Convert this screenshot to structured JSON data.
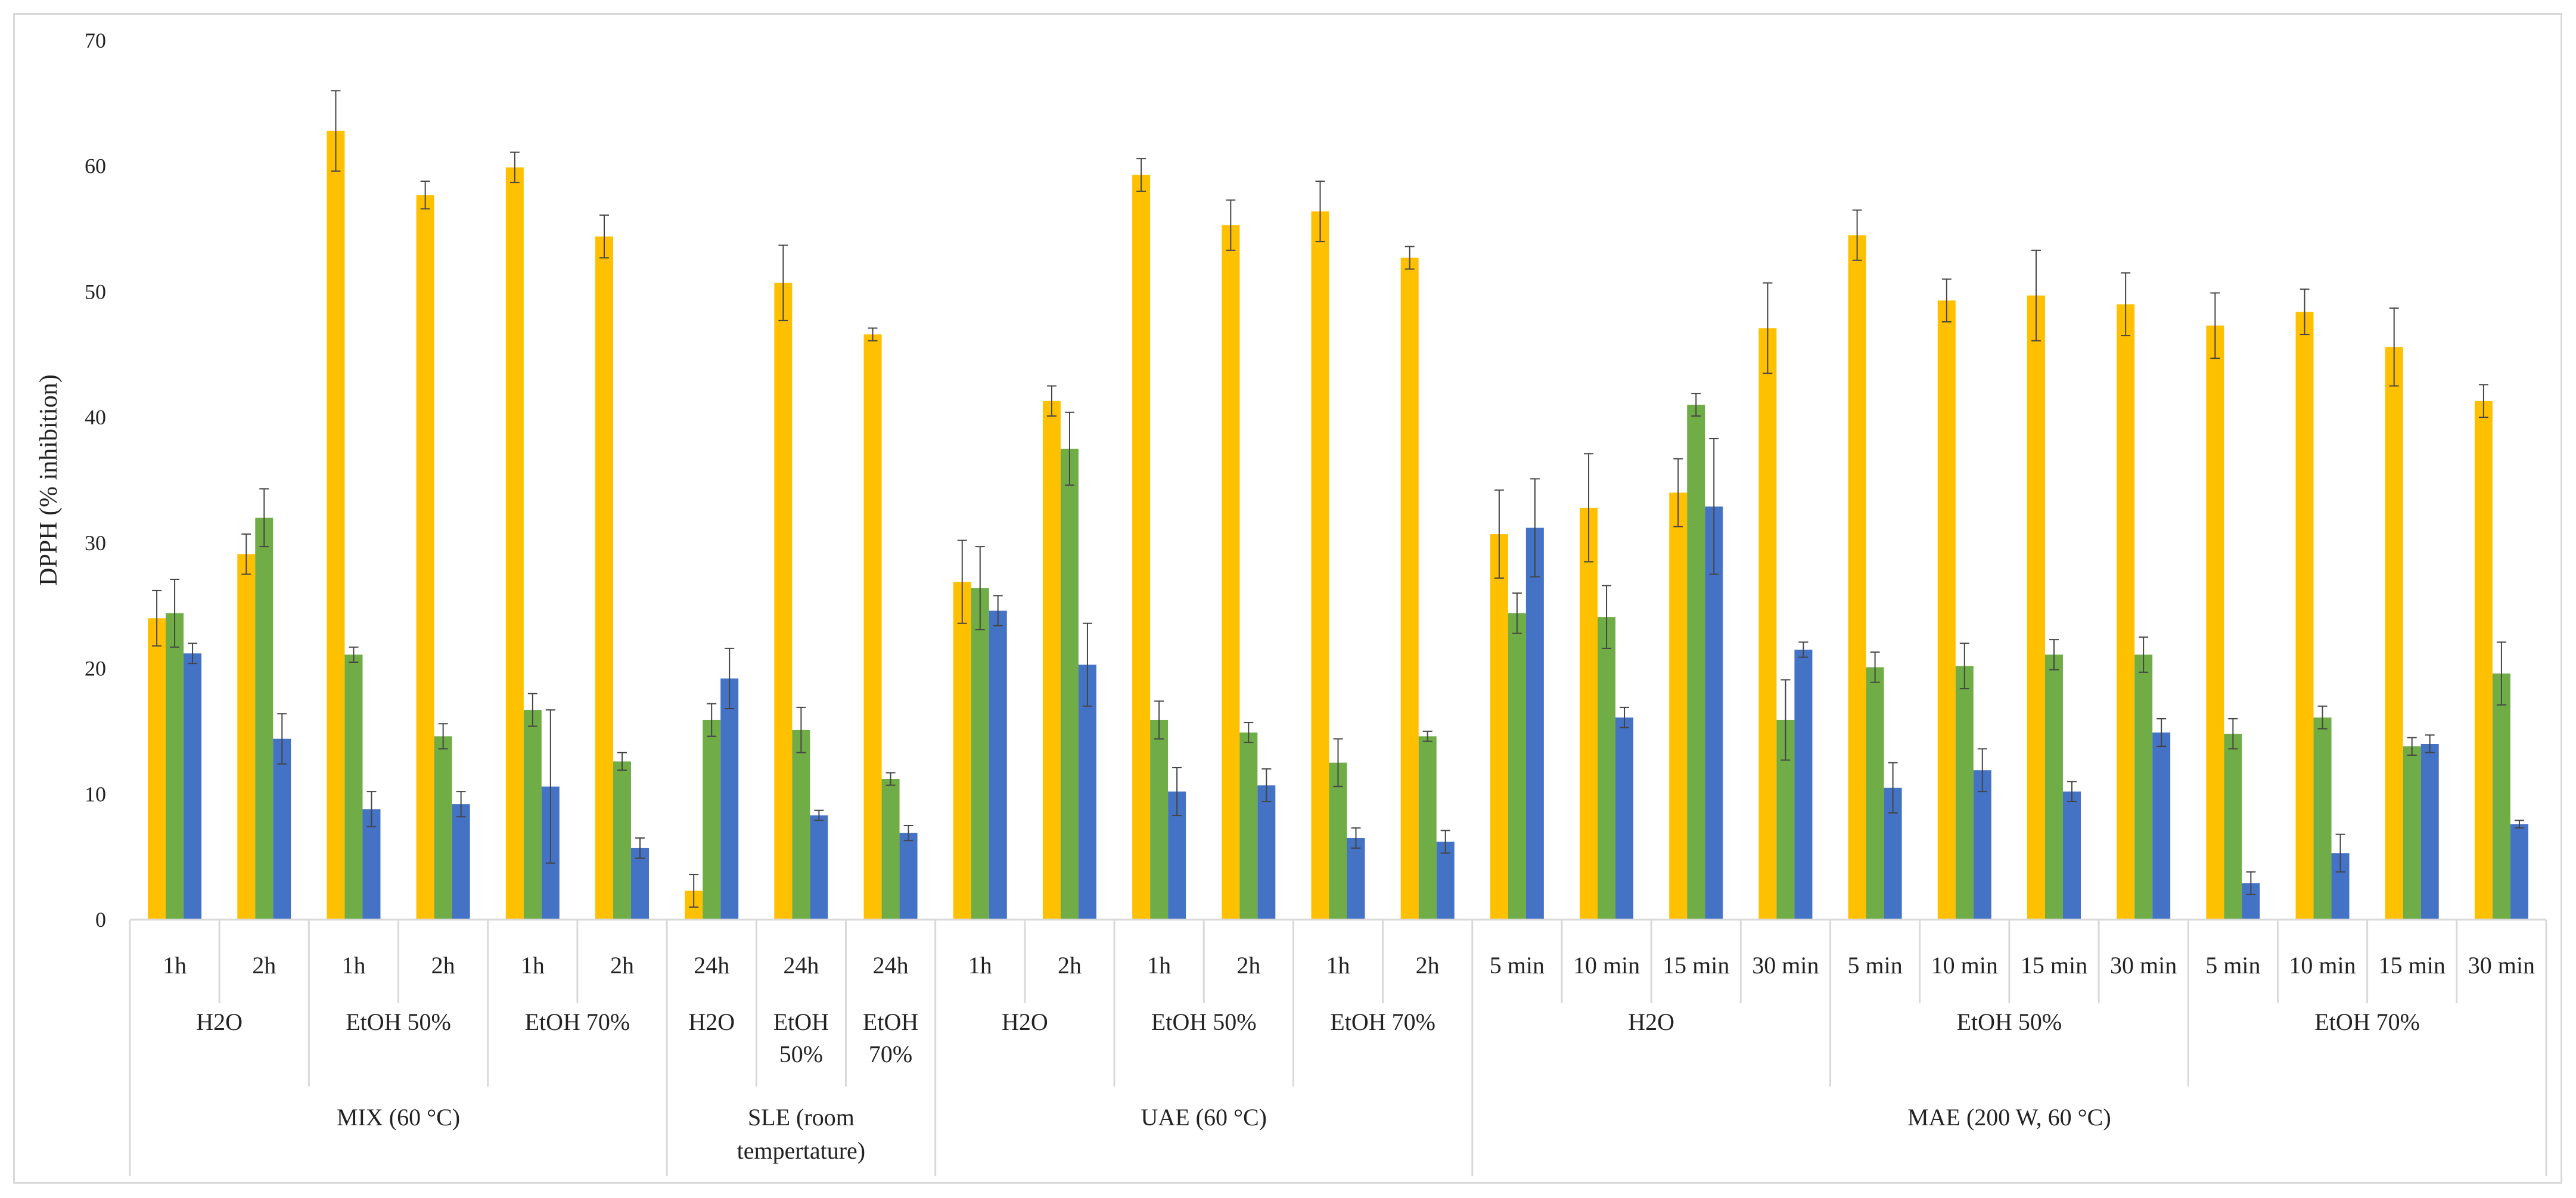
{
  "chart_data": {
    "type": "bar",
    "title": "",
    "xlabel": "",
    "ylabel": "DPPH (% inhibition)",
    "ylim": [
      0,
      70
    ],
    "yticks": [
      "0",
      "10",
      "20",
      "30",
      "40",
      "50",
      "60",
      "70"
    ],
    "gridlines": false,
    "legend": "none",
    "series": [
      {
        "name": "series-1",
        "color": "#FFC000"
      },
      {
        "name": "series-2",
        "color": "#70AD47"
      },
      {
        "name": "series-3",
        "color": "#4472C4"
      }
    ],
    "categories": [
      {
        "label": "1h",
        "values": [
          24.0,
          24.4,
          21.2
        ],
        "errors": [
          2.2,
          2.7,
          0.8
        ]
      },
      {
        "label": "2h",
        "values": [
          29.1,
          32.0,
          14.4
        ],
        "errors": [
          1.6,
          2.3,
          2.0
        ]
      },
      {
        "label": "1h",
        "values": [
          62.8,
          21.1,
          8.8
        ],
        "errors": [
          3.2,
          0.6,
          1.4
        ]
      },
      {
        "label": "2h",
        "values": [
          57.7,
          14.6,
          9.2
        ],
        "errors": [
          1.1,
          1.0,
          1.0
        ]
      },
      {
        "label": "1h",
        "values": [
          59.9,
          16.7,
          10.6
        ],
        "errors": [
          1.2,
          1.3,
          6.1
        ]
      },
      {
        "label": "2h",
        "values": [
          54.4,
          12.6,
          5.7
        ],
        "errors": [
          1.7,
          0.7,
          0.8
        ]
      },
      {
        "label": "24h",
        "values": [
          2.3,
          15.9,
          19.2
        ],
        "errors": [
          1.3,
          1.3,
          2.4
        ]
      },
      {
        "label": "24h",
        "values": [
          50.7,
          15.1,
          8.3
        ],
        "errors": [
          3.0,
          1.8,
          0.4
        ]
      },
      {
        "label": "24h",
        "values": [
          46.6,
          11.2,
          6.9
        ],
        "errors": [
          0.5,
          0.5,
          0.6
        ]
      },
      {
        "label": "1h",
        "values": [
          26.9,
          26.4,
          24.6
        ],
        "errors": [
          3.3,
          3.3,
          1.2
        ]
      },
      {
        "label": "2h",
        "values": [
          41.3,
          37.5,
          20.3
        ],
        "errors": [
          1.2,
          2.9,
          3.3
        ]
      },
      {
        "label": "1h",
        "values": [
          59.3,
          15.9,
          10.2
        ],
        "errors": [
          1.3,
          1.5,
          1.9
        ]
      },
      {
        "label": "2h",
        "values": [
          55.3,
          14.9,
          10.7
        ],
        "errors": [
          2.0,
          0.8,
          1.3
        ]
      },
      {
        "label": "1h",
        "values": [
          56.4,
          12.5,
          6.5
        ],
        "errors": [
          2.4,
          1.9,
          0.8
        ]
      },
      {
        "label": "2h",
        "values": [
          52.7,
          14.6,
          6.2
        ],
        "errors": [
          0.9,
          0.4,
          0.9
        ]
      },
      {
        "label": "5 min",
        "values": [
          30.7,
          24.4,
          31.2
        ],
        "errors": [
          3.5,
          1.6,
          3.9
        ]
      },
      {
        "label": "10 min",
        "values": [
          32.8,
          24.1,
          16.1
        ],
        "errors": [
          4.3,
          2.5,
          0.8
        ]
      },
      {
        "label": "15 min",
        "values": [
          34.0,
          41.0,
          32.9
        ],
        "errors": [
          2.7,
          0.9,
          5.4
        ]
      },
      {
        "label": "30 min",
        "values": [
          47.1,
          15.9,
          21.5
        ],
        "errors": [
          3.6,
          3.2,
          0.6
        ]
      },
      {
        "label": "5 min",
        "values": [
          54.5,
          20.1,
          10.5
        ],
        "errors": [
          2.0,
          1.2,
          2.0
        ]
      },
      {
        "label": "10 min",
        "values": [
          49.3,
          20.2,
          11.9
        ],
        "errors": [
          1.7,
          1.8,
          1.7
        ]
      },
      {
        "label": "15 min",
        "values": [
          49.7,
          21.1,
          10.2
        ],
        "errors": [
          3.6,
          1.2,
          0.8
        ]
      },
      {
        "label": "30 min",
        "values": [
          49.0,
          21.1,
          14.9
        ],
        "errors": [
          2.5,
          1.4,
          1.1
        ]
      },
      {
        "label": "5 min",
        "values": [
          47.3,
          14.8,
          2.9
        ],
        "errors": [
          2.6,
          1.2,
          0.9
        ]
      },
      {
        "label": "10 min",
        "values": [
          48.4,
          16.1,
          5.3
        ],
        "errors": [
          1.8,
          0.9,
          1.5
        ]
      },
      {
        "label": "15 min",
        "values": [
          45.6,
          13.8,
          14.0
        ],
        "errors": [
          3.1,
          0.7,
          0.7
        ]
      },
      {
        "label": "30 min",
        "values": [
          41.3,
          19.6,
          7.6
        ],
        "errors": [
          1.3,
          2.5,
          0.3
        ]
      }
    ],
    "groups_level2": [
      {
        "label": [
          "H2O"
        ],
        "span": [
          0,
          1
        ]
      },
      {
        "label": [
          "EtOH 50%"
        ],
        "span": [
          2,
          3
        ]
      },
      {
        "label": [
          "EtOH 70%"
        ],
        "span": [
          4,
          5
        ]
      },
      {
        "label": [
          "H2O"
        ],
        "span": [
          6,
          6
        ]
      },
      {
        "label": [
          "EtOH",
          "50%"
        ],
        "span": [
          7,
          7
        ]
      },
      {
        "label": [
          "EtOH",
          "70%"
        ],
        "span": [
          8,
          8
        ]
      },
      {
        "label": [
          "H2O"
        ],
        "span": [
          9,
          10
        ]
      },
      {
        "label": [
          "EtOH 50%"
        ],
        "span": [
          11,
          12
        ]
      },
      {
        "label": [
          "EtOH 70%"
        ],
        "span": [
          13,
          14
        ]
      },
      {
        "label": [
          "H2O"
        ],
        "span": [
          15,
          18
        ]
      },
      {
        "label": [
          "EtOH 50%"
        ],
        "span": [
          19,
          22
        ]
      },
      {
        "label": [
          "EtOH 70%"
        ],
        "span": [
          23,
          26
        ]
      }
    ],
    "groups_level3": [
      {
        "label": [
          "MIX (60 °C)"
        ],
        "span": [
          0,
          5
        ]
      },
      {
        "label": [
          "SLE (room",
          "tempertature)"
        ],
        "span": [
          6,
          8
        ]
      },
      {
        "label": [
          "UAE (60 °C)"
        ],
        "span": [
          9,
          14
        ]
      },
      {
        "label": [
          "MAE (200 W, 60 °C)"
        ],
        "span": [
          15,
          26
        ]
      }
    ]
  }
}
